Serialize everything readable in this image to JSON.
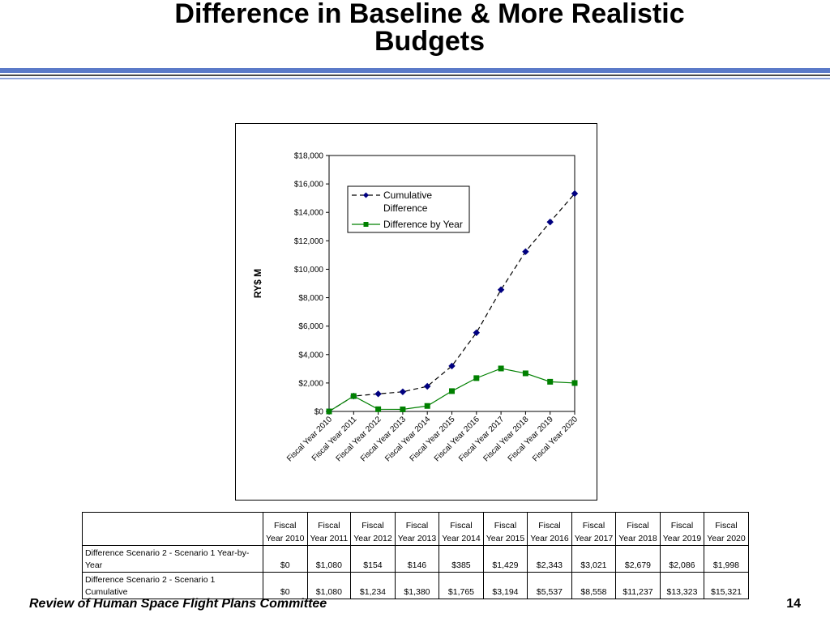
{
  "slide": {
    "title_line1": "Difference in Baseline & More Realistic",
    "title_line2": "Budgets",
    "footer": "Review of Human Space Flight Plans Committee",
    "page_number": "14",
    "rule_color": "#5b7ac8"
  },
  "chart_data": {
    "type": "line",
    "title": "",
    "xlabel": "",
    "ylabel": "RY$ M",
    "ylim": [
      0,
      18000
    ],
    "yticks": [
      0,
      2000,
      4000,
      6000,
      8000,
      10000,
      12000,
      14000,
      16000,
      18000
    ],
    "ytick_labels": [
      "$0",
      "$2,000",
      "$4,000",
      "$6,000",
      "$8,000",
      "$10,000",
      "$12,000",
      "$14,000",
      "$16,000",
      "$18,000"
    ],
    "categories": [
      "Fiscal Year 2010",
      "Fiscal Year 2011",
      "Fiscal Year 2012",
      "Fiscal Year 2013",
      "Fiscal Year 2014",
      "Fiscal Year 2015",
      "Fiscal Year 2016",
      "Fiscal Year 2017",
      "Fiscal Year 2018",
      "Fiscal Year 2019",
      "Fiscal Year 2020"
    ],
    "grid": false,
    "legend_position": "top-right inside plot",
    "series": [
      {
        "name": "Cumulative Difference",
        "legend_line1": "Cumulative",
        "legend_line2": "Difference",
        "color": "#000080",
        "line_style": "dashed",
        "marker": "diamond",
        "values": [
          0,
          1080,
          1234,
          1380,
          1765,
          3194,
          5537,
          8558,
          11237,
          13323,
          15321
        ]
      },
      {
        "name": "Difference by Year",
        "color": "#008000",
        "line_style": "solid",
        "marker": "square",
        "values": [
          0,
          1080,
          154,
          146,
          385,
          1429,
          2343,
          3021,
          2679,
          2086,
          1998
        ]
      }
    ]
  },
  "table": {
    "header_top": [
      "Fiscal",
      "Fiscal",
      "Fiscal",
      "Fiscal",
      "Fiscal",
      "Fiscal",
      "Fiscal",
      "Fiscal",
      "Fiscal",
      "Fiscal",
      "Fiscal"
    ],
    "header_bottom": [
      "Year 2010",
      "Year 2011",
      "Year 2012",
      "Year 2013",
      "Year 2014",
      "Year 2015",
      "Year 2016",
      "Year 2017",
      "Year 2018",
      "Year 2019",
      "Year 2020"
    ],
    "rows": [
      {
        "label_line1": "Difference Scenario 2 - Scenario 1 Year-by-",
        "label_line2": "Year",
        "values": [
          "$0",
          "$1,080",
          "$154",
          "$146",
          "$385",
          "$1,429",
          "$2,343",
          "$3,021",
          "$2,679",
          "$2,086",
          "$1,998"
        ]
      },
      {
        "label_line1": "Difference Scenario 2 - Scenario 1",
        "label_line2": "Cumulative",
        "values": [
          "$0",
          "$1,080",
          "$1,234",
          "$1,380",
          "$1,765",
          "$3,194",
          "$5,537",
          "$8,558",
          "$11,237",
          "$13,323",
          "$15,321"
        ]
      }
    ]
  }
}
